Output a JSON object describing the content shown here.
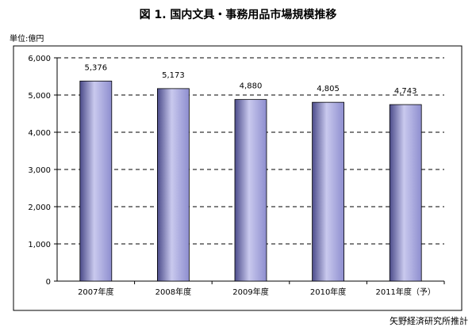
{
  "chart_data": {
    "type": "bar",
    "title": "図 1.  国内文具・事務用品市場規模推移",
    "unit_label": "単位:億円",
    "source_note": "矢野経済研究所推計",
    "categories": [
      "2007年度",
      "2008年度",
      "2009年度",
      "2010年度",
      "2011年度（予）"
    ],
    "values": [
      5376,
      5173,
      4880,
      4805,
      4743
    ],
    "data_labels": [
      "5,376",
      "5,173",
      "4,880",
      "4,805",
      "4,743"
    ],
    "xlabel": "",
    "ylabel": "",
    "ylim": [
      0,
      6000
    ],
    "yticks": [
      0,
      1000,
      2000,
      3000,
      4000,
      5000,
      6000
    ],
    "ytick_labels": [
      "0",
      "1,000",
      "2,000",
      "3,000",
      "4,000",
      "5,000",
      "6,000"
    ],
    "grid": true,
    "grid_style": "dashed",
    "legend": "none",
    "colors": {
      "bar_mid": "#8e8ecf",
      "bar_light": "#c9c9ee",
      "bar_dark": "#4b4b8a",
      "bar_edge": "#000000",
      "axis": "#000000",
      "grid": "#000000",
      "frame": "#000000"
    }
  }
}
